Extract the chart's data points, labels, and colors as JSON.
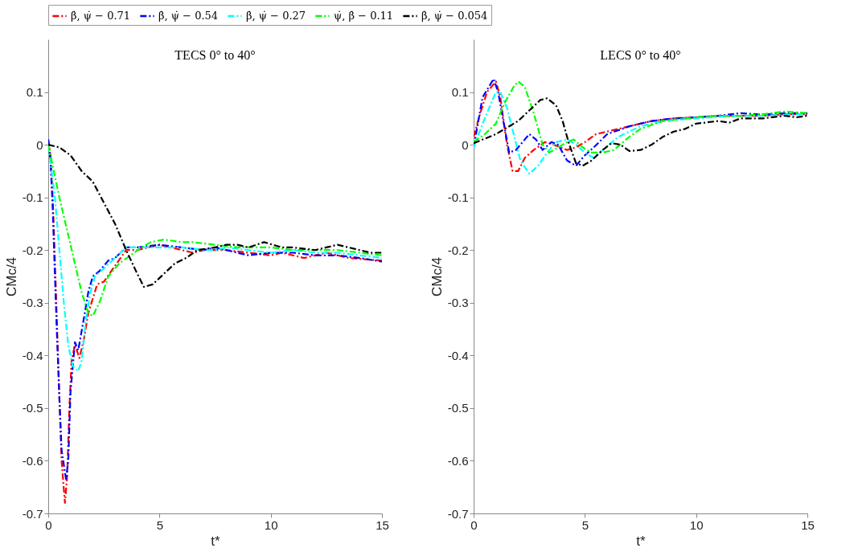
{
  "chart_data": [
    {
      "type": "line",
      "title": "TECS 0° to 40°",
      "xlabel": "t*",
      "ylabel": "CMc/4",
      "xlim": [
        0,
        15
      ],
      "xticks": [
        0,
        5,
        10,
        15
      ],
      "ylim": [
        -0.7,
        0.2
      ],
      "yticks": [
        -0.7,
        -0.6,
        -0.5,
        -0.4,
        -0.3,
        -0.2,
        -0.1,
        0,
        0.1
      ],
      "grid": false,
      "legend": "top",
      "line_style": "dashed",
      "marker": "none",
      "series": [
        {
          "name": "β̇, ψ̇ − 0.71",
          "color": "#ff0000",
          "x": [
            0,
            0.1,
            0.2,
            0.3,
            0.4,
            0.5,
            0.6,
            0.75,
            0.85,
            0.95,
            1.05,
            1.2,
            1.4,
            1.6,
            1.8,
            2.2,
            2.5,
            3,
            3.5,
            4,
            4.5,
            5,
            5.5,
            6,
            6.5,
            7,
            8,
            9,
            10,
            10.5,
            11.5,
            12.5,
            13.5,
            15
          ],
          "values": [
            0.01,
            -0.02,
            -0.1,
            -0.22,
            -0.35,
            -0.48,
            -0.6,
            -0.68,
            -0.63,
            -0.5,
            -0.41,
            -0.38,
            -0.405,
            -0.37,
            -0.32,
            -0.265,
            -0.26,
            -0.23,
            -0.2,
            -0.2,
            -0.195,
            -0.19,
            -0.195,
            -0.2,
            -0.205,
            -0.2,
            -0.2,
            -0.205,
            -0.21,
            -0.205,
            -0.215,
            -0.205,
            -0.215,
            -0.22
          ]
        },
        {
          "name": "β̇, ψ̇ − 0.54",
          "color": "#0000ff",
          "x": [
            0,
            0.1,
            0.2,
            0.3,
            0.4,
            0.5,
            0.6,
            0.8,
            0.9,
            1.0,
            1.2,
            1.35,
            1.6,
            1.8,
            2.0,
            2.3,
            2.7,
            3.0,
            3.5,
            4,
            5,
            6,
            7,
            7.5,
            8,
            9,
            10,
            11,
            12,
            13,
            14,
            15
          ],
          "values": [
            0.01,
            -0.03,
            -0.12,
            -0.25,
            -0.37,
            -0.48,
            -0.58,
            -0.635,
            -0.6,
            -0.47,
            -0.375,
            -0.39,
            -0.33,
            -0.28,
            -0.25,
            -0.24,
            -0.22,
            -0.215,
            -0.195,
            -0.195,
            -0.19,
            -0.195,
            -0.2,
            -0.195,
            -0.2,
            -0.21,
            -0.205,
            -0.205,
            -0.21,
            -0.21,
            -0.215,
            -0.222
          ]
        },
        {
          "name": "β̇, ψ̇ − 0.27",
          "color": "#00ffff",
          "x": [
            0,
            0.3,
            0.5,
            0.7,
            0.9,
            1.1,
            1.35,
            1.5,
            1.7,
            1.9,
            2.1,
            2.5,
            3,
            3.5,
            4.5,
            5,
            6,
            7,
            7.5,
            8,
            9,
            10,
            11,
            12,
            13,
            14,
            15
          ],
          "values": [
            0,
            -0.1,
            -0.2,
            -0.3,
            -0.38,
            -0.42,
            -0.43,
            -0.41,
            -0.33,
            -0.28,
            -0.25,
            -0.235,
            -0.215,
            -0.195,
            -0.195,
            -0.195,
            -0.195,
            -0.2,
            -0.2,
            -0.195,
            -0.2,
            -0.205,
            -0.2,
            -0.205,
            -0.205,
            -0.21,
            -0.215
          ]
        },
        {
          "name": "ψ̇, β̇ − 0.11",
          "color": "#00ff00",
          "x": [
            0,
            0.5,
            1,
            1.5,
            1.8,
            2.0,
            2.3,
            2.7,
            3.2,
            3.7,
            4.2,
            4.6,
            5.2,
            6,
            6.5,
            7.5,
            8.5,
            10,
            11,
            12,
            13,
            14,
            15
          ],
          "values": [
            0,
            -0.1,
            -0.19,
            -0.28,
            -0.32,
            -0.325,
            -0.3,
            -0.25,
            -0.225,
            -0.21,
            -0.195,
            -0.185,
            -0.18,
            -0.185,
            -0.185,
            -0.19,
            -0.195,
            -0.195,
            -0.2,
            -0.2,
            -0.2,
            -0.205,
            -0.21
          ]
        },
        {
          "name": "β̇, ψ̇ − 0.054",
          "color": "#000000",
          "x": [
            0,
            0.5,
            1,
            1.5,
            2,
            2.5,
            3,
            3.5,
            4,
            4.3,
            4.7,
            5.2,
            5.7,
            6.2,
            6.7,
            7.5,
            8,
            8.5,
            9,
            9.7,
            10.5,
            11,
            12,
            12.5,
            13,
            14,
            14.5,
            15
          ],
          "values": [
            0,
            -0.005,
            -0.02,
            -0.05,
            -0.07,
            -0.11,
            -0.15,
            -0.2,
            -0.245,
            -0.27,
            -0.265,
            -0.245,
            -0.225,
            -0.215,
            -0.2,
            -0.195,
            -0.19,
            -0.19,
            -0.195,
            -0.185,
            -0.195,
            -0.195,
            -0.2,
            -0.195,
            -0.19,
            -0.2,
            -0.205,
            -0.205
          ]
        }
      ]
    },
    {
      "type": "line",
      "title": "LECS 0° to 40°",
      "xlabel": "t*",
      "ylabel": "CMc/4",
      "xlim": [
        0,
        15
      ],
      "xticks": [
        0,
        5,
        10,
        15
      ],
      "ylim": [
        -0.7,
        0.2
      ],
      "yticks": [
        -0.7,
        -0.6,
        -0.5,
        -0.4,
        -0.3,
        -0.2,
        -0.1,
        0,
        0.1
      ],
      "grid": false,
      "line_style": "dashed",
      "marker": "none",
      "series": [
        {
          "color": "#ff0000",
          "x": [
            0,
            0.3,
            0.6,
            1.0,
            1.2,
            1.5,
            1.75,
            2.0,
            2.3,
            2.7,
            3.2,
            3.6,
            4.2,
            4.6,
            5,
            5.5,
            6,
            7,
            8,
            9,
            10,
            11,
            12,
            13,
            14,
            15
          ],
          "values": [
            0.015,
            0.06,
            0.1,
            0.12,
            0.09,
            0.0,
            -0.05,
            -0.05,
            -0.025,
            -0.01,
            0.005,
            0.0,
            -0.01,
            -0.005,
            0.005,
            0.02,
            0.025,
            0.035,
            0.045,
            0.05,
            0.052,
            0.055,
            0.055,
            0.055,
            0.058,
            0.058
          ]
        },
        {
          "color": "#0000ff",
          "x": [
            0,
            0.4,
            0.9,
            1.1,
            1.4,
            1.6,
            1.9,
            2.5,
            2.8,
            3.1,
            3.5,
            3.8,
            4.2,
            4.6,
            5.0,
            5.4,
            6,
            7,
            8,
            9,
            10,
            11,
            12,
            13,
            14,
            15
          ],
          "values": [
            -0.005,
            0.09,
            0.125,
            0.1,
            0.03,
            -0.015,
            -0.01,
            0.02,
            0.01,
            -0.01,
            0.005,
            0.0,
            -0.03,
            -0.04,
            -0.02,
            -0.005,
            0.02,
            0.035,
            0.045,
            0.05,
            0.052,
            0.055,
            0.06,
            0.057,
            0.06,
            0.06
          ]
        },
        {
          "color": "#00ffff",
          "x": [
            0,
            0.5,
            1.0,
            1.2,
            1.5,
            1.8,
            2.1,
            2.5,
            2.9,
            3.3,
            3.7,
            4.2,
            4.6,
            5.0,
            5.4,
            5.8,
            6.5,
            7.5,
            8.5,
            10,
            11,
            12,
            13,
            14,
            15
          ],
          "values": [
            -0.005,
            0.05,
            0.1,
            0.1,
            0.07,
            0.02,
            -0.03,
            -0.055,
            -0.04,
            -0.015,
            0.005,
            0.01,
            0.0,
            -0.015,
            -0.025,
            -0.01,
            0.015,
            0.035,
            0.045,
            0.05,
            0.053,
            0.055,
            0.055,
            0.057,
            0.058
          ]
        },
        {
          "color": "#00ff00",
          "x": [
            0,
            0.5,
            1.0,
            1.4,
            1.8,
            2.0,
            2.3,
            2.7,
            3.1,
            3.4,
            3.8,
            4.2,
            4.5,
            4.9,
            5.3,
            5.8,
            6.3,
            7,
            7.5,
            8.5,
            10,
            11,
            12,
            13,
            14,
            15
          ],
          "values": [
            0.005,
            0.02,
            0.04,
            0.08,
            0.11,
            0.12,
            0.11,
            0.06,
            0.0,
            -0.015,
            -0.005,
            0.005,
            0.01,
            -0.005,
            -0.015,
            -0.015,
            -0.01,
            0.015,
            0.03,
            0.045,
            0.052,
            0.055,
            0.055,
            0.058,
            0.063,
            0.06
          ]
        },
        {
          "color": "#000000",
          "x": [
            0,
            1,
            2,
            2.5,
            3.0,
            3.3,
            3.7,
            4.0,
            4.3,
            4.6,
            4.9,
            5.3,
            5.8,
            6.2,
            6.6,
            7.0,
            7.5,
            8,
            8.5,
            9,
            9.5,
            10,
            11,
            11.5,
            12,
            13,
            14,
            14.5,
            15
          ],
          "values": [
            0.003,
            0.02,
            0.045,
            0.065,
            0.085,
            0.088,
            0.075,
            0.045,
            0.0,
            -0.035,
            -0.04,
            -0.03,
            -0.01,
            0.003,
            0.0,
            -0.012,
            -0.01,
            0.0,
            0.015,
            0.025,
            0.03,
            0.04,
            0.045,
            0.042,
            0.05,
            0.05,
            0.055,
            0.052,
            0.055
          ]
        }
      ]
    }
  ]
}
